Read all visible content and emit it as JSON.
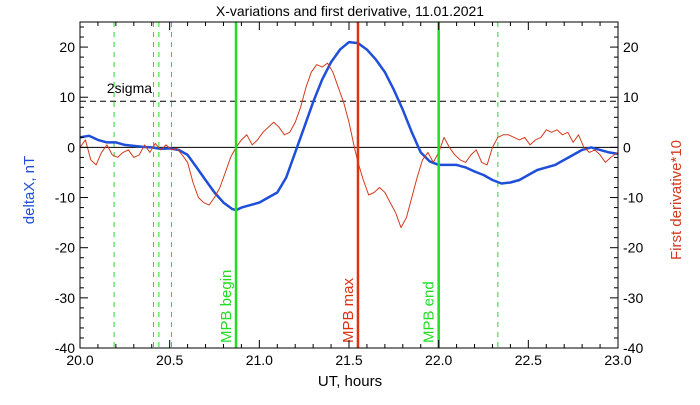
{
  "chart_data": {
    "type": "line",
    "title": "X-variations and first derivative, 11.01.2021",
    "xlabel": "UT, hours",
    "ylabel_left": "deltaX, nT",
    "ylabel_right": "First derivative*10",
    "xlim": [
      20.0,
      23.0
    ],
    "ylim_left": [
      -40,
      25
    ],
    "ylim_right": [
      -40,
      25
    ],
    "x_ticks": [
      "20.0",
      "20.5",
      "21.0",
      "21.5",
      "22.0",
      "22.5",
      "23.0"
    ],
    "y_ticks_left": [
      "20",
      "10",
      "0",
      "-10",
      "-20",
      "-30",
      "-40"
    ],
    "y_ticks_right": [
      "20",
      "10",
      "0",
      "-10",
      "-20",
      "-30",
      "-40"
    ],
    "colors": {
      "deltaX": "#1f4fd8",
      "derivative": "#d23b1e",
      "mpb_edge": "#22dd22",
      "mpb_max": "#dd3311",
      "axes": "#000000"
    },
    "threshold": {
      "label": "2sigma",
      "value": 9.2
    },
    "dashed_markers_x": [
      20.19,
      20.41,
      20.44,
      20.51,
      22.33
    ],
    "vlines": [
      {
        "label": "MPB begin",
        "x": 20.87,
        "kind": "mpb_edge"
      },
      {
        "label": "MPB max",
        "x": 21.55,
        "kind": "mpb_max"
      },
      {
        "label": "MPB end",
        "x": 22.0,
        "kind": "mpb_edge"
      }
    ],
    "series": [
      {
        "key": "deltaX",
        "axis": "left",
        "x": [
          20.0,
          20.05,
          20.1,
          20.15,
          20.2,
          20.25,
          20.3,
          20.35,
          20.4,
          20.45,
          20.5,
          20.55,
          20.6,
          20.65,
          20.7,
          20.75,
          20.8,
          20.85,
          20.87,
          20.9,
          20.95,
          21.0,
          21.05,
          21.1,
          21.15,
          21.2,
          21.25,
          21.3,
          21.35,
          21.4,
          21.45,
          21.5,
          21.55,
          21.6,
          21.65,
          21.7,
          21.75,
          21.8,
          21.85,
          21.9,
          21.95,
          22.0,
          22.05,
          22.1,
          22.15,
          22.2,
          22.25,
          22.3,
          22.35,
          22.4,
          22.45,
          22.5,
          22.55,
          22.6,
          22.65,
          22.7,
          22.75,
          22.8,
          22.85,
          22.9,
          22.95,
          23.0
        ],
        "y": [
          2.0,
          2.3,
          1.5,
          1.0,
          1.0,
          0.5,
          0.3,
          0.1,
          0.0,
          -0.3,
          -0.2,
          -0.5,
          -1.5,
          -4.0,
          -6.5,
          -9.0,
          -11.0,
          -12.3,
          -12.5,
          -12.0,
          -11.5,
          -11.0,
          -10.0,
          -9.0,
          -6.0,
          -1.0,
          4.0,
          9.0,
          13.5,
          17.0,
          19.5,
          21.0,
          20.8,
          19.5,
          17.5,
          15.0,
          11.5,
          7.5,
          3.0,
          -1.0,
          -2.8,
          -3.5,
          -3.5,
          -3.5,
          -4.0,
          -4.8,
          -5.5,
          -6.5,
          -7.2,
          -7.0,
          -6.5,
          -5.5,
          -4.5,
          -4.0,
          -3.5,
          -2.5,
          -1.5,
          -0.5,
          0.0,
          -0.5,
          -1.0,
          -1.3
        ]
      },
      {
        "key": "derivative",
        "axis": "right",
        "x": [
          20.0,
          20.03,
          20.06,
          20.09,
          20.12,
          20.15,
          20.18,
          20.21,
          20.24,
          20.27,
          20.3,
          20.33,
          20.36,
          20.39,
          20.42,
          20.45,
          20.48,
          20.51,
          20.54,
          20.57,
          20.6,
          20.63,
          20.66,
          20.69,
          20.72,
          20.75,
          20.78,
          20.81,
          20.84,
          20.87,
          20.9,
          20.93,
          20.96,
          20.99,
          21.02,
          21.05,
          21.08,
          21.11,
          21.14,
          21.17,
          21.2,
          21.23,
          21.26,
          21.29,
          21.32,
          21.35,
          21.38,
          21.41,
          21.44,
          21.47,
          21.5,
          21.53,
          21.55,
          21.58,
          21.61,
          21.64,
          21.67,
          21.7,
          21.73,
          21.76,
          21.79,
          21.82,
          21.85,
          21.88,
          21.91,
          21.94,
          21.97,
          22.0,
          22.03,
          22.06,
          22.09,
          22.12,
          22.15,
          22.18,
          22.21,
          22.24,
          22.27,
          22.3,
          22.33,
          22.36,
          22.39,
          22.42,
          22.45,
          22.48,
          22.51,
          22.54,
          22.57,
          22.6,
          22.63,
          22.66,
          22.69,
          22.72,
          22.75,
          22.78,
          22.81,
          22.84,
          22.87,
          22.9,
          22.93,
          22.96,
          23.0
        ],
        "y": [
          0.0,
          1.5,
          -2.5,
          -3.5,
          -1.0,
          0.5,
          -1.5,
          -2.0,
          -1.0,
          -0.5,
          -2.0,
          -1.5,
          0.5,
          -1.0,
          0.8,
          -0.5,
          0.5,
          -0.5,
          -0.2,
          -1.5,
          -3.0,
          -7.0,
          -10.0,
          -11.0,
          -11.5,
          -10.0,
          -8.0,
          -5.0,
          -2.0,
          0.0,
          1.5,
          2.5,
          0.5,
          1.5,
          3.0,
          4.0,
          5.0,
          4.0,
          2.5,
          3.0,
          5.0,
          8.0,
          12.0,
          15.0,
          16.5,
          16.0,
          16.8,
          15.0,
          12.0,
          9.0,
          5.0,
          0.0,
          -3.0,
          -6.5,
          -9.5,
          -9.0,
          -8.0,
          -9.0,
          -11.0,
          -13.0,
          -16.0,
          -14.0,
          -10.0,
          -6.0,
          -2.5,
          -1.0,
          -3.0,
          -1.0,
          2.0,
          0.0,
          -1.5,
          -2.5,
          -3.0,
          -1.5,
          -0.5,
          -3.0,
          -3.5,
          0.0,
          2.0,
          2.5,
          2.5,
          2.0,
          1.5,
          2.0,
          0.5,
          1.5,
          2.0,
          3.5,
          3.0,
          3.5,
          2.5,
          3.0,
          1.0,
          2.5,
          0.0,
          -1.0,
          -0.5,
          -1.5,
          -3.0,
          -2.0,
          -1.0
        ]
      }
    ]
  }
}
